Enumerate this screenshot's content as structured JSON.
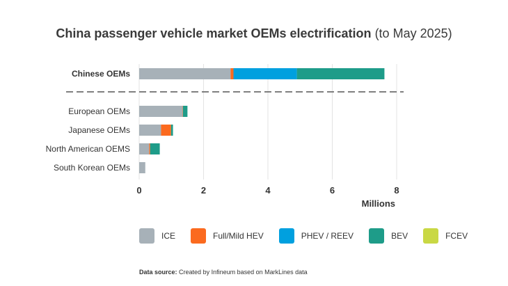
{
  "chart_data": {
    "type": "bar",
    "orientation": "horizontal",
    "stacked": true,
    "title": "China passenger vehicle market OEMs electrification",
    "subtitle": "(to May 2025)",
    "xlabel": "Millions",
    "xlim": [
      0,
      8
    ],
    "xticks": [
      "0",
      "2",
      "4",
      "6",
      "8"
    ],
    "grid": true,
    "legend_position": "bottom",
    "categories": [
      "Chinese OEMs",
      "European OEMs",
      "Japanese OEMs",
      "North American OEMS",
      "South Korean OEMs"
    ],
    "series": [
      {
        "name": "ICE",
        "color": "#a7b1b8",
        "values": [
          2.84,
          1.35,
          0.68,
          0.31,
          0.19
        ]
      },
      {
        "name": "Full/Mild HEV",
        "color": "#fb6a1f",
        "values": [
          0.09,
          0.01,
          0.31,
          0.03,
          0
        ]
      },
      {
        "name": "PHEV / REEV",
        "color": "#00a0df",
        "values": [
          1.97,
          0,
          0,
          0,
          0
        ]
      },
      {
        "name": "BEV",
        "color": "#1e9c89",
        "values": [
          2.72,
          0.14,
          0.06,
          0.3,
          0
        ]
      },
      {
        "name": "FCEV",
        "color": "#c9d844",
        "values": [
          0,
          0,
          0,
          0,
          0
        ]
      }
    ],
    "source_label": "Data source:",
    "source_text": "Created by Infineum based on MarkLines data"
  }
}
